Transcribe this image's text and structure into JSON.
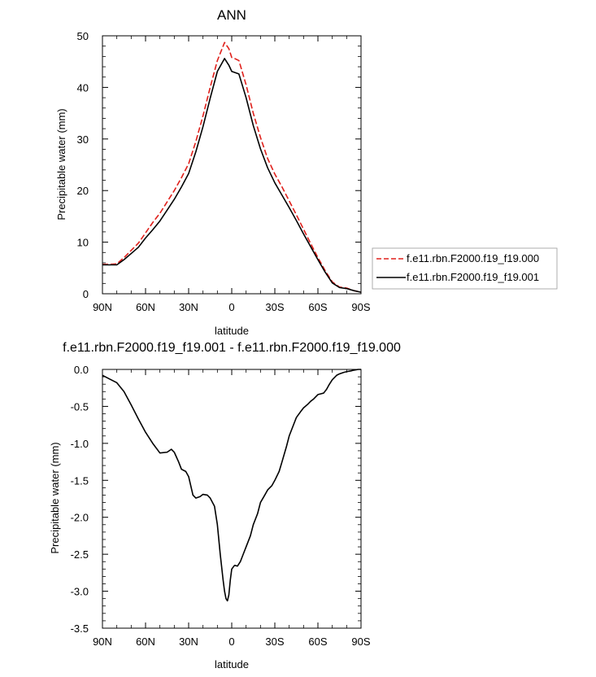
{
  "chart_data": [
    {
      "type": "line",
      "title": "ANN",
      "xlabel": "latitude",
      "ylabel": "Precipitable water (mm)",
      "xlim": [
        90,
        -90
      ],
      "ylim": [
        0,
        50
      ],
      "xticks": [
        90,
        60,
        30,
        0,
        -30,
        -60,
        -90
      ],
      "xtick_labels": [
        "90N",
        "60N",
        "30N",
        "0",
        "30S",
        "60S",
        "90S"
      ],
      "yticks": [
        0,
        10,
        20,
        30,
        40,
        50
      ],
      "ytick_labels": [
        "0",
        "10",
        "20",
        "30",
        "40",
        "50"
      ],
      "legend_position": "outside-right",
      "grid": false,
      "series": [
        {
          "name": "f.e11.rbn.F2000.f19_f19.000",
          "color": "#e0201b",
          "style": "dashed",
          "x": [
            90,
            85,
            80,
            75,
            70,
            65,
            60,
            55,
            50,
            45,
            40,
            35,
            30,
            25,
            20,
            15,
            10,
            5,
            2,
            0,
            -2,
            -5,
            -10,
            -15,
            -20,
            -25,
            -30,
            -35,
            -40,
            -45,
            -50,
            -55,
            -60,
            -65,
            -70,
            -75,
            -80,
            -85,
            -90
          ],
          "y": [
            5.7,
            5.7,
            5.8,
            7.0,
            8.4,
            9.8,
            11.8,
            13.8,
            15.6,
            17.8,
            20.0,
            22.5,
            25.2,
            29.5,
            34.5,
            40.0,
            45.2,
            48.7,
            47.5,
            45.8,
            45.6,
            45.2,
            40.5,
            35.0,
            30.3,
            26.2,
            23.2,
            20.7,
            18.0,
            15.3,
            12.5,
            9.7,
            7.0,
            4.5,
            2.3,
            1.3,
            1.1,
            0.6,
            0.3
          ]
        },
        {
          "name": "f.e11.rbn.F2000.f19_f19.001",
          "color": "#000000",
          "style": "solid",
          "x": [
            90,
            85,
            80,
            75,
            70,
            65,
            60,
            55,
            50,
            45,
            40,
            35,
            30,
            25,
            20,
            15,
            10,
            5,
            2,
            0,
            -2,
            -5,
            -10,
            -15,
            -20,
            -25,
            -30,
            -35,
            -40,
            -45,
            -50,
            -55,
            -60,
            -65,
            -70,
            -75,
            -80,
            -85,
            -90
          ],
          "y": [
            5.6,
            5.6,
            5.6,
            6.6,
            7.8,
            9.0,
            10.8,
            12.4,
            14.1,
            16.2,
            18.3,
            20.7,
            23.3,
            27.5,
            32.4,
            37.9,
            43.1,
            45.6,
            44.3,
            43.1,
            42.9,
            42.6,
            38.0,
            32.6,
            28.1,
            24.4,
            21.5,
            19.1,
            16.7,
            14.2,
            11.6,
            9.1,
            6.6,
            4.2,
            2.1,
            1.2,
            1.0,
            0.6,
            0.3
          ]
        }
      ]
    },
    {
      "type": "line",
      "title": "f.e11.rbn.F2000.f19_f19.001 - f.e11.rbn.F2000.f19_f19.000",
      "xlabel": "latitude",
      "ylabel": "Precipitable water (mm)",
      "xlim": [
        90,
        -90
      ],
      "ylim": [
        -3.5,
        0
      ],
      "xticks": [
        90,
        60,
        30,
        0,
        -30,
        -60,
        -90
      ],
      "xtick_labels": [
        "90N",
        "60N",
        "30N",
        "0",
        "30S",
        "60S",
        "90S"
      ],
      "yticks": [
        0,
        -0.5,
        -1,
        -1.5,
        -2,
        -2.5,
        -3,
        -3.5
      ],
      "ytick_labels": [
        "0.0",
        "-0.5",
        "-1.0",
        "-1.5",
        "-2.0",
        "-2.5",
        "-3.0",
        "-3.5"
      ],
      "grid": false,
      "series": [
        {
          "color": "#000000",
          "style": "solid",
          "x": [
            90,
            85,
            80,
            75,
            70,
            65,
            60,
            55,
            50,
            45,
            42,
            40,
            37,
            35,
            32,
            30,
            27,
            25,
            22,
            20,
            17,
            15,
            12,
            10,
            8,
            6,
            5,
            4,
            3,
            2,
            1,
            0,
            -2,
            -4,
            -6,
            -8,
            -10,
            -13,
            -15,
            -18,
            -20,
            -23,
            -25,
            -28,
            -30,
            -33,
            -35,
            -38,
            -40,
            -43,
            -45,
            -48,
            -50,
            -53,
            -55,
            -57,
            -60,
            -62,
            -64,
            -66,
            -68,
            -70,
            -73,
            -75,
            -78,
            -80,
            -83,
            -85,
            -88,
            -90
          ],
          "y": [
            -0.08,
            -0.13,
            -0.18,
            -0.3,
            -0.48,
            -0.67,
            -0.85,
            -1.0,
            -1.13,
            -1.12,
            -1.08,
            -1.12,
            -1.25,
            -1.35,
            -1.38,
            -1.45,
            -1.7,
            -1.74,
            -1.72,
            -1.69,
            -1.7,
            -1.74,
            -1.85,
            -2.1,
            -2.5,
            -2.85,
            -3.0,
            -3.1,
            -3.13,
            -3.05,
            -2.85,
            -2.7,
            -2.65,
            -2.66,
            -2.6,
            -2.5,
            -2.4,
            -2.25,
            -2.1,
            -1.95,
            -1.8,
            -1.7,
            -1.63,
            -1.57,
            -1.5,
            -1.38,
            -1.25,
            -1.05,
            -0.9,
            -0.75,
            -0.65,
            -0.57,
            -0.52,
            -0.47,
            -0.43,
            -0.4,
            -0.34,
            -0.33,
            -0.32,
            -0.27,
            -0.2,
            -0.14,
            -0.08,
            -0.06,
            -0.04,
            -0.03,
            -0.02,
            -0.01,
            0.0,
            0.0
          ]
        }
      ]
    }
  ]
}
